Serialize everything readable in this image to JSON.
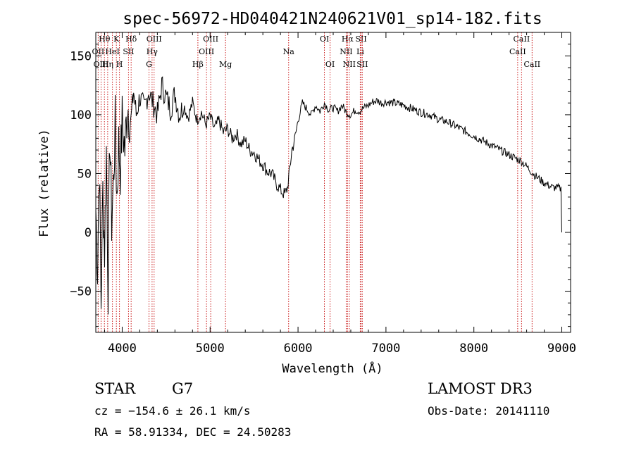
{
  "chart_data": {
    "type": "line",
    "title": "spec-56972-HD040421N240621V01_sp14-182.fits",
    "xlabel": "Wavelength (Å)",
    "ylabel": "Flux (relative)",
    "xlim": [
      3700,
      9100
    ],
    "ylim": [
      -85,
      170
    ],
    "xticks": [
      4000,
      5000,
      6000,
      7000,
      8000,
      9000
    ],
    "yticks": [
      -50,
      0,
      50,
      100,
      150
    ],
    "grid": false,
    "series": [
      {
        "name": "flux",
        "x": [
          3700,
          3720,
          3740,
          3760,
          3780,
          3800,
          3820,
          3840,
          3860,
          3880,
          3900,
          3920,
          3940,
          3960,
          3980,
          4000,
          4030,
          4060,
          4100,
          4130,
          4160,
          4200,
          4250,
          4300,
          4350,
          4400,
          4450,
          4500,
          4550,
          4600,
          4650,
          4700,
          4750,
          4800,
          4850,
          4900,
          4950,
          5000,
          5050,
          5100,
          5150,
          5200,
          5250,
          5300,
          5350,
          5400,
          5450,
          5500,
          5550,
          5600,
          5650,
          5700,
          5750,
          5800,
          5850,
          5880,
          5900,
          5930,
          5960,
          6000,
          6050,
          6100,
          6150,
          6200,
          6250,
          6300,
          6350,
          6400,
          6450,
          6500,
          6550,
          6600,
          6650,
          6700,
          6750,
          6800,
          6850,
          6900,
          6950,
          7000,
          7100,
          7200,
          7300,
          7400,
          7500,
          7600,
          7700,
          7800,
          7900,
          8000,
          8100,
          8200,
          8300,
          8400,
          8500,
          8550,
          8600,
          8650,
          8700,
          8750,
          8800,
          8850,
          8900,
          8950,
          8990,
          9000
        ],
        "values": [
          20,
          -30,
          60,
          -60,
          35,
          -15,
          70,
          -45,
          85,
          10,
          40,
          90,
          30,
          75,
          55,
          95,
          70,
          110,
          95,
          120,
          100,
          115,
          105,
          120,
          110,
          100,
          125,
          115,
          105,
          118,
          100,
          108,
          98,
          110,
          96,
          102,
          92,
          98,
          88,
          95,
          85,
          88,
          80,
          84,
          75,
          78,
          70,
          68,
          62,
          58,
          52,
          50,
          42,
          36,
          32,
          38,
          50,
          70,
          78,
          95,
          110,
          105,
          100,
          108,
          103,
          110,
          104,
          106,
          103,
          108,
          102,
          100,
          104,
          103,
          106,
          108,
          111,
          112,
          110,
          111,
          110,
          108,
          105,
          102,
          100,
          96,
          94,
          90,
          86,
          82,
          78,
          74,
          70,
          66,
          62,
          60,
          56,
          52,
          48,
          45,
          42,
          40,
          38,
          38,
          37,
          0
        ]
      }
    ],
    "line_markers": [
      {
        "name": "Hθ",
        "wl": 3798,
        "row": 0
      },
      {
        "name": "OII",
        "wl": 3727,
        "row": 1
      },
      {
        "name": "OIII",
        "wl": 3760,
        "row": 2
      },
      {
        "name": "K",
        "wl": 3934,
        "row": 0
      },
      {
        "name": "HeI",
        "wl": 3889,
        "row": 1
      },
      {
        "name": "Hη",
        "wl": 3835,
        "row": 2
      },
      {
        "name": "H",
        "wl": 3969,
        "row": 2
      },
      {
        "name": "Hδ",
        "wl": 4102,
        "row": 0
      },
      {
        "name": "SII",
        "wl": 4072,
        "row": 1
      },
      {
        "name": "OIII",
        "wl": 4363,
        "row": 0
      },
      {
        "name": "Hγ",
        "wl": 4340,
        "row": 1
      },
      {
        "name": "G",
        "wl": 4305,
        "row": 2
      },
      {
        "name": "Hβ",
        "wl": 4861,
        "row": 2
      },
      {
        "name": "OIII",
        "wl": 5007,
        "row": 0
      },
      {
        "name": "OIII",
        "wl": 4959,
        "row": 1
      },
      {
        "name": "Mg",
        "wl": 5175,
        "row": 2
      },
      {
        "name": "Na",
        "wl": 5893,
        "row": 1
      },
      {
        "name": "OI",
        "wl": 6300,
        "row": 0
      },
      {
        "name": "OI",
        "wl": 6364,
        "row": 2
      },
      {
        "name": "Hα",
        "wl": 6563,
        "row": 0
      },
      {
        "name": "NII",
        "wl": 6548,
        "row": 1
      },
      {
        "name": "NII",
        "wl": 6583,
        "row": 2
      },
      {
        "name": "SII",
        "wl": 6717,
        "row": 0
      },
      {
        "name": "Li",
        "wl": 6708,
        "row": 1
      },
      {
        "name": "SII",
        "wl": 6731,
        "row": 2
      },
      {
        "name": "CaII",
        "wl": 8542,
        "row": 0
      },
      {
        "name": "CaII",
        "wl": 8498,
        "row": 1
      },
      {
        "name": "CaII",
        "wl": 8662,
        "row": 2
      }
    ]
  },
  "info": {
    "class": "STAR",
    "subclass": "G7",
    "survey": "LAMOST DR3",
    "cz": "cz = −154.6 ± 26.1 km/s",
    "obs_date": "Obs-Date: 20141110",
    "radec": "RA =  58.91334, DEC =  24.50283"
  },
  "colors": {
    "axes": "#000000",
    "line_marker": "#cc2222",
    "spectrum": "#000000"
  }
}
